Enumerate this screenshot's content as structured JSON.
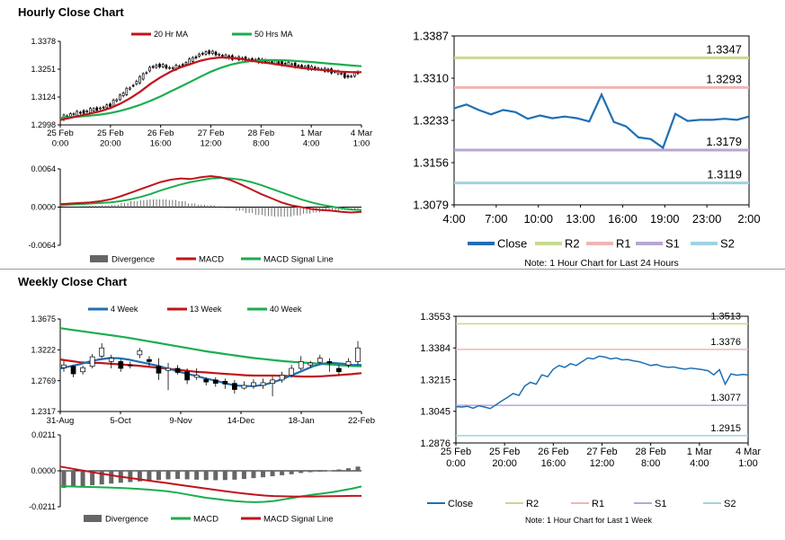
{
  "sections": {
    "hourly_title": "Hourly Close Chart",
    "weekly_title": "Weekly Close Chart"
  },
  "colors": {
    "ma_short": "#c0141c",
    "ma_long": "#1aae4e",
    "macd_red": "#c0141c",
    "signal_green": "#1aae4e",
    "close_blue": "#1f6fb4",
    "r2": "#c7d98e",
    "r1": "#eeb6b4",
    "s1": "#b8a6d3",
    "s2": "#9fd2e3",
    "divergence": "#666666",
    "candle": "#000000"
  },
  "chart_data": [
    {
      "id": "hourly_candles",
      "type": "candlestick",
      "y_ticks": [
        "1.3378",
        "1.3251",
        "1.3124",
        "1.2998"
      ],
      "ylim": [
        1.2998,
        1.3378
      ],
      "x_ticks": [
        [
          "25 Feb",
          "0:00"
        ],
        [
          "25 Feb",
          "20:00"
        ],
        [
          "26 Feb",
          "16:00"
        ],
        [
          "27 Feb",
          "12:00"
        ],
        [
          "28 Feb",
          "8:00"
        ],
        [
          "1 Mar",
          "4:00"
        ],
        [
          "4 Mar",
          "1:00"
        ]
      ],
      "legend": [
        "20 Hr MA",
        "50 Hrs MA"
      ],
      "close_path": [
        1.303,
        1.3045,
        1.3055,
        1.3065,
        1.3075,
        1.309,
        1.313,
        1.317,
        1.321,
        1.326,
        1.327,
        1.3255,
        1.3265,
        1.329,
        1.332,
        1.333,
        1.3315,
        1.3305,
        1.33,
        1.3295,
        1.329,
        1.3285,
        1.328,
        1.3275,
        1.3265,
        1.3258,
        1.3252,
        1.3245,
        1.3235,
        1.3215,
        1.324
      ],
      "ma20": [
        1.302,
        1.303,
        1.304,
        1.305,
        1.306,
        1.3075,
        1.3095,
        1.312,
        1.315,
        1.3185,
        1.3215,
        1.324,
        1.326,
        1.3275,
        1.329,
        1.33,
        1.3305,
        1.3303,
        1.3298,
        1.329,
        1.3283,
        1.3277,
        1.327,
        1.3263,
        1.3257,
        1.3252,
        1.3248,
        1.3244,
        1.324,
        1.3238,
        1.3238
      ],
      "ma50": [
        1.303,
        1.3033,
        1.3036,
        1.304,
        1.3045,
        1.3052,
        1.3062,
        1.3075,
        1.309,
        1.3108,
        1.3128,
        1.315,
        1.3172,
        1.3195,
        1.3218,
        1.324,
        1.3258,
        1.3272,
        1.3282,
        1.3288,
        1.3292,
        1.3293,
        1.3292,
        1.329,
        1.3287,
        1.3284,
        1.328,
        1.3276,
        1.3272,
        1.3268,
        1.3265
      ]
    },
    {
      "id": "hourly_macd",
      "type": "macd",
      "y_ticks": [
        "0.0064",
        "0.0000",
        "-0.0064"
      ],
      "ylim": [
        -0.0064,
        0.0064
      ],
      "legend": [
        "Divergence",
        "MACD",
        "MACD Signal Line"
      ],
      "macd": [
        0.0005,
        0.0006,
        0.0007,
        0.0008,
        0.001,
        0.0013,
        0.0018,
        0.0024,
        0.003,
        0.0036,
        0.0042,
        0.0046,
        0.0048,
        0.0047,
        0.005,
        0.0052,
        0.005,
        0.0045,
        0.0038,
        0.003,
        0.0022,
        0.0015,
        0.0008,
        0.0003,
        0.0,
        -0.0003,
        -0.0005,
        -0.0006,
        -0.0008,
        -0.0009,
        -0.0008
      ],
      "signal": [
        0.0003,
        0.0004,
        0.0005,
        0.0006,
        0.0007,
        0.0008,
        0.001,
        0.0013,
        0.0017,
        0.0022,
        0.0028,
        0.0033,
        0.0038,
        0.0042,
        0.0045,
        0.0048,
        0.0049,
        0.0048,
        0.0046,
        0.0042,
        0.0037,
        0.0031,
        0.0025,
        0.0019,
        0.0013,
        0.0008,
        0.0004,
        0.0001,
        -0.0002,
        -0.0004,
        -0.0005
      ],
      "divergence": [
        0.0001,
        0.0001,
        0.0002,
        0.0002,
        0.0003,
        0.0004,
        0.0007,
        0.001,
        0.0012,
        0.0013,
        0.0013,
        0.0012,
        0.001,
        0.0006,
        0.0004,
        0.0003,
        0.0001,
        -0.0002,
        -0.0006,
        -0.001,
        -0.0013,
        -0.0015,
        -0.0016,
        -0.0016,
        -0.0014,
        -0.0011,
        -0.0009,
        -0.0007,
        -0.0006,
        -0.0005,
        -0.0003
      ]
    },
    {
      "id": "hourly_24h",
      "type": "line",
      "y_ticks": [
        "1.3387",
        "1.3310",
        "1.3233",
        "1.3156",
        "1.3079"
      ],
      "ylim": [
        1.3079,
        1.3387
      ],
      "x_ticks": [
        "4:00",
        "7:00",
        "10:00",
        "13:00",
        "16:00",
        "19:00",
        "23:00",
        "2:00"
      ],
      "levels": [
        {
          "name": "R2",
          "value": 1.3347,
          "label": "1.3347"
        },
        {
          "name": "R1",
          "value": 1.3293,
          "label": "1.3293"
        },
        {
          "name": "S1",
          "value": 1.3179,
          "label": "1.3179"
        },
        {
          "name": "S2",
          "value": 1.3119,
          "label": "1.3119"
        }
      ],
      "close": [
        1.3255,
        1.3262,
        1.3252,
        1.3244,
        1.3252,
        1.3248,
        1.3236,
        1.3242,
        1.3237,
        1.324,
        1.3237,
        1.3231,
        1.328,
        1.323,
        1.3222,
        1.3202,
        1.3199,
        1.3183,
        1.3245,
        1.3232,
        1.3234,
        1.3234,
        1.3236,
        1.3234,
        1.324
      ],
      "legend": [
        "Close",
        "R2",
        "R1",
        "S1",
        "S2"
      ],
      "note": "Note: 1 Hour Chart for Last 24 Hours"
    },
    {
      "id": "weekly_candles",
      "type": "candlestick",
      "y_ticks": [
        "1.3675",
        "1.3222",
        "1.2769",
        "1.2317"
      ],
      "ylim": [
        1.2317,
        1.3675
      ],
      "x_ticks": [
        "31-Aug",
        "5-Oct",
        "9-Nov",
        "14-Dec",
        "18-Jan",
        "22-Feb"
      ],
      "legend": [
        "4 Week",
        "13 Week",
        "40 Week"
      ],
      "candles": [
        {
          "o": 1.296,
          "c": 1.3,
          "h": 1.306,
          "l": 1.29
        },
        {
          "o": 1.298,
          "c": 1.287,
          "h": 1.3,
          "l": 1.282
        },
        {
          "o": 1.29,
          "c": 1.296,
          "h": 1.299,
          "l": 1.286
        },
        {
          "o": 1.298,
          "c": 1.312,
          "h": 1.316,
          "l": 1.295
        },
        {
          "o": 1.313,
          "c": 1.325,
          "h": 1.332,
          "l": 1.31
        },
        {
          "o": 1.305,
          "c": 1.31,
          "h": 1.315,
          "l": 1.295
        },
        {
          "o": 1.305,
          "c": 1.295,
          "h": 1.308,
          "l": 1.29
        },
        {
          "o": 1.3,
          "c": 1.299,
          "h": 1.305,
          "l": 1.295
        },
        {
          "o": 1.315,
          "c": 1.321,
          "h": 1.325,
          "l": 1.31
        },
        {
          "o": 1.308,
          "c": 1.305,
          "h": 1.313,
          "l": 1.298
        },
        {
          "o": 1.298,
          "c": 1.288,
          "h": 1.31,
          "l": 1.278
        },
        {
          "o": 1.292,
          "c": 1.295,
          "h": 1.303,
          "l": 1.263
        },
        {
          "o": 1.295,
          "c": 1.289,
          "h": 1.3,
          "l": 1.286
        },
        {
          "o": 1.29,
          "c": 1.278,
          "h": 1.295,
          "l": 1.272
        },
        {
          "o": 1.282,
          "c": 1.285,
          "h": 1.295,
          "l": 1.278
        },
        {
          "o": 1.279,
          "c": 1.275,
          "h": 1.282,
          "l": 1.27
        },
        {
          "o": 1.278,
          "c": 1.273,
          "h": 1.282,
          "l": 1.268
        },
        {
          "o": 1.276,
          "c": 1.272,
          "h": 1.28,
          "l": 1.265
        },
        {
          "o": 1.273,
          "c": 1.264,
          "h": 1.278,
          "l": 1.258
        },
        {
          "o": 1.266,
          "c": 1.27,
          "h": 1.276,
          "l": 1.264
        },
        {
          "o": 1.269,
          "c": 1.274,
          "h": 1.279,
          "l": 1.265
        },
        {
          "o": 1.27,
          "c": 1.274,
          "h": 1.28,
          "l": 1.265
        },
        {
          "o": 1.273,
          "c": 1.278,
          "h": 1.283,
          "l": 1.254
        },
        {
          "o": 1.278,
          "c": 1.285,
          "h": 1.29,
          "l": 1.274
        },
        {
          "o": 1.285,
          "c": 1.295,
          "h": 1.3,
          "l": 1.282
        },
        {
          "o": 1.295,
          "c": 1.305,
          "h": 1.313,
          "l": 1.292
        },
        {
          "o": 1.3,
          "c": 1.303,
          "h": 1.306,
          "l": 1.296
        },
        {
          "o": 1.304,
          "c": 1.31,
          "h": 1.315,
          "l": 1.302
        },
        {
          "o": 1.305,
          "c": 1.303,
          "h": 1.31,
          "l": 1.29
        },
        {
          "o": 1.295,
          "c": 1.29,
          "h": 1.3,
          "l": 1.285
        },
        {
          "o": 1.3,
          "c": 1.305,
          "h": 1.31,
          "l": 1.296
        },
        {
          "o": 1.305,
          "c": 1.325,
          "h": 1.335,
          "l": 1.3
        }
      ],
      "wk4": [
        1.295,
        1.298,
        1.301,
        1.305,
        1.308,
        1.31,
        1.31,
        1.308,
        1.305,
        1.302,
        1.299,
        1.295,
        1.291,
        1.287,
        1.284,
        1.28,
        1.277,
        1.273,
        1.27,
        1.269,
        1.269,
        1.271,
        1.275,
        1.28,
        1.286,
        1.292,
        1.298,
        1.302,
        1.303,
        1.302,
        1.3,
        1.3
      ],
      "wk13": [
        1.308,
        1.306,
        1.304,
        1.303,
        1.303,
        1.302,
        1.301,
        1.3,
        1.299,
        1.2975,
        1.296,
        1.2945,
        1.293,
        1.2915,
        1.29,
        1.289,
        1.288,
        1.287,
        1.286,
        1.285,
        1.2845,
        1.2845,
        1.2845,
        1.284,
        1.2835,
        1.283,
        1.283,
        1.2835,
        1.2845,
        1.2855,
        1.2865,
        1.288
      ],
      "wk40": [
        1.354,
        1.352,
        1.35,
        1.348,
        1.346,
        1.344,
        1.342,
        1.34,
        1.3375,
        1.335,
        1.3325,
        1.33,
        1.3275,
        1.325,
        1.3225,
        1.32,
        1.318,
        1.316,
        1.314,
        1.312,
        1.31,
        1.3085,
        1.307,
        1.3055,
        1.3045,
        1.3035,
        1.3025,
        1.3015,
        1.3005,
        1.2995,
        1.2985,
        1.298
      ]
    },
    {
      "id": "weekly_macd",
      "type": "macd",
      "y_ticks": [
        "0.0211",
        "0.0000",
        "-0.0211"
      ],
      "ylim": [
        -0.0211,
        0.0211
      ],
      "legend": [
        "Divergence",
        "MACD",
        "MACD Signal Line"
      ],
      "macd": [
        -0.009,
        -0.0092,
        -0.0094,
        -0.0095,
        -0.0096,
        -0.0098,
        -0.01,
        -0.0103,
        -0.0106,
        -0.011,
        -0.0115,
        -0.012,
        -0.0128,
        -0.0138,
        -0.0148,
        -0.0158,
        -0.0165,
        -0.0172,
        -0.0178,
        -0.0182,
        -0.0184,
        -0.0182,
        -0.0177,
        -0.0168,
        -0.0158,
        -0.0148,
        -0.014,
        -0.0133,
        -0.0125,
        -0.0115,
        -0.0105,
        -0.0092
      ],
      "signal": [
        0.0025,
        0.0015,
        0.0005,
        -0.0005,
        -0.0015,
        -0.0024,
        -0.0033,
        -0.0041,
        -0.0049,
        -0.0057,
        -0.0065,
        -0.0072,
        -0.008,
        -0.0088,
        -0.0096,
        -0.0104,
        -0.0112,
        -0.012,
        -0.0127,
        -0.0134,
        -0.014,
        -0.0145,
        -0.0148,
        -0.015,
        -0.0151,
        -0.0151,
        -0.0151,
        -0.015,
        -0.0149,
        -0.0148,
        -0.0147,
        -0.0147
      ],
      "divergence": [
        -0.01,
        -0.0095,
        -0.009,
        -0.0085,
        -0.008,
        -0.0075,
        -0.007,
        -0.0066,
        -0.0062,
        -0.0058,
        -0.0054,
        -0.005,
        -0.0048,
        -0.005,
        -0.0052,
        -0.0054,
        -0.0055,
        -0.0054,
        -0.0052,
        -0.0048,
        -0.0043,
        -0.0038,
        -0.0032,
        -0.0026,
        -0.002,
        -0.0013,
        -0.0008,
        -0.0003,
        0.0002,
        0.0008,
        0.0015,
        0.0025
      ]
    },
    {
      "id": "weekly_1w",
      "type": "line",
      "y_ticks": [
        "1.3553",
        "1.3384",
        "1.3215",
        "1.3045",
        "1.2876"
      ],
      "ylim": [
        1.2876,
        1.3553
      ],
      "x_ticks": [
        [
          "25 Feb",
          "0:00"
        ],
        [
          "25 Feb",
          "20:00"
        ],
        [
          "26 Feb",
          "16:00"
        ],
        [
          "27 Feb",
          "12:00"
        ],
        [
          "28 Feb",
          "8:00"
        ],
        [
          "1 Mar",
          "4:00"
        ],
        [
          "4 Mar",
          "1:00"
        ]
      ],
      "levels": [
        {
          "name": "R2",
          "value": 1.3513,
          "label": "1.3513"
        },
        {
          "name": "R1",
          "value": 1.3376,
          "label": "1.3376"
        },
        {
          "name": "S1",
          "value": 1.3077,
          "label": "1.3077"
        },
        {
          "name": "S2",
          "value": 1.2915,
          "label": "1.2915"
        }
      ],
      "close": [
        1.307,
        1.3068,
        1.3072,
        1.3062,
        1.3075,
        1.3068,
        1.306,
        1.308,
        1.31,
        1.312,
        1.314,
        1.313,
        1.318,
        1.32,
        1.319,
        1.324,
        1.323,
        1.327,
        1.329,
        1.328,
        1.33,
        1.329,
        1.331,
        1.333,
        1.3325,
        1.334,
        1.3335,
        1.3325,
        1.333,
        1.332,
        1.3322,
        1.3315,
        1.331,
        1.33,
        1.329,
        1.3295,
        1.3285,
        1.328,
        1.3282,
        1.3275,
        1.327,
        1.3276,
        1.3272,
        1.3268,
        1.3262,
        1.324,
        1.3268,
        1.319,
        1.3245,
        1.3238,
        1.3242,
        1.324
      ],
      "legend": [
        "Close",
        "R2",
        "R1",
        "S1",
        "S2"
      ],
      "note": "Note: 1 Hour Chart for Last 1 Week"
    }
  ]
}
